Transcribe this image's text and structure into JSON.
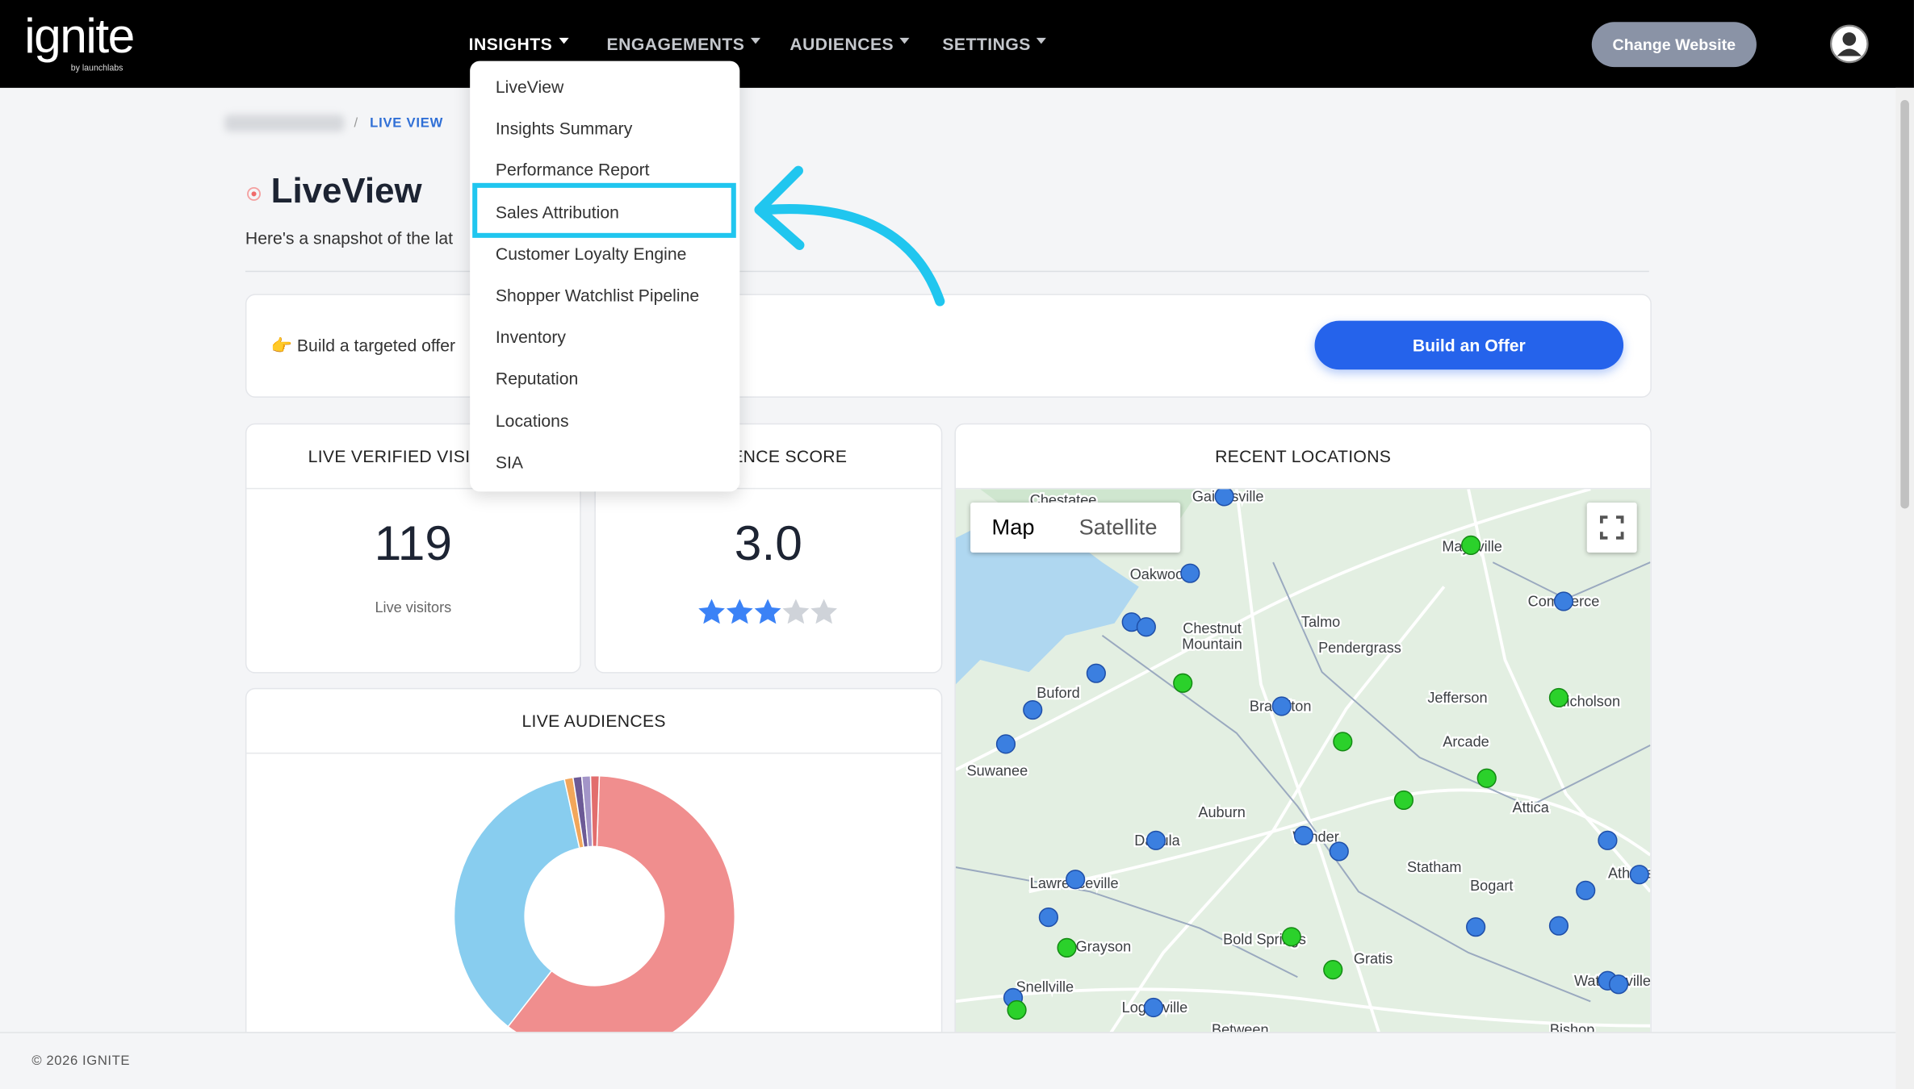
{
  "header": {
    "logo": "ignite",
    "logo_sub": "by launchlabs",
    "nav": [
      "INSIGHTS",
      "ENGAGEMENTS",
      "AUDIENCES",
      "SETTINGS"
    ],
    "change_website": "Change Website"
  },
  "dropdown": {
    "items": [
      "LiveView",
      "Insights Summary",
      "Performance Report",
      "Sales Attribution",
      "Customer Loyalty Engine",
      "Shopper Watchlist Pipeline",
      "Inventory",
      "Reputation",
      "Locations",
      "SIA"
    ]
  },
  "breadcrumb": {
    "current": "LIVE VIEW"
  },
  "page": {
    "title": "LiveView",
    "subtitle": "Here's a snapshot of the lat"
  },
  "banner": {
    "text": "👉 Build a targeted offer",
    "button": "Build an Offer"
  },
  "cards": [
    {
      "title": "LIVE VERIFIED VISITORS",
      "value": "119",
      "caption": "Live visitors"
    },
    {
      "title": "AUDIENCE SCORE",
      "value": "3.0"
    }
  ],
  "chart_data": {
    "type": "donut",
    "title": "LIVE AUDIENCES",
    "values": [
      60,
      36,
      1,
      1,
      1,
      1
    ],
    "colors": [
      "#f08e8e",
      "#88cdef",
      "#f2a65a",
      "#6c5a96",
      "#a395c8",
      "#e26d6d"
    ]
  },
  "map": {
    "title": "RECENT LOCATIONS",
    "buttons": [
      "Map",
      "Satellite"
    ],
    "labels": [
      "Chestatee",
      "Gainesville",
      "Oakwood",
      "Chestnut",
      "Mountain",
      "Talmo",
      "Pendergrass",
      "Maysville",
      "Commerce",
      "Buford",
      "Braselton",
      "Jefferson",
      "Nicholson",
      "Arcade",
      "Suwanee",
      "Auburn",
      "Attica",
      "Dacula",
      "Winder",
      "Lawrenceville",
      "Statham",
      "Bogart",
      "Athens",
      "Grayson",
      "Bold Springs",
      "Gratis",
      "Snellville",
      "Loganville",
      "Watkinsville",
      "Between",
      "Bishop"
    ]
  },
  "footer": "© 2026 IGNITE"
}
